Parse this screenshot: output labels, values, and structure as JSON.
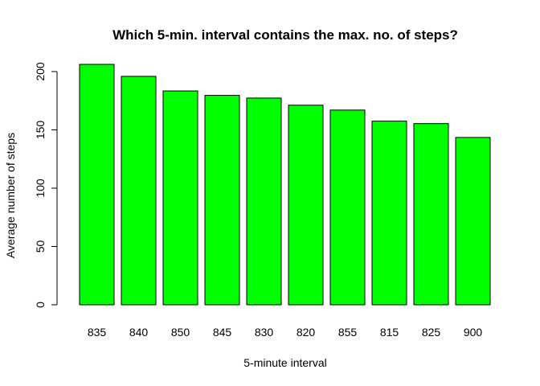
{
  "chart_data": {
    "type": "bar",
    "title": "Which 5-min. interval contains the max. no. of steps?",
    "xlabel": "5-minute interval",
    "ylabel": "Average number of steps",
    "categories": [
      "835",
      "840",
      "850",
      "845",
      "830",
      "820",
      "855",
      "815",
      "825",
      "900"
    ],
    "values": [
      206.2,
      195.9,
      183.4,
      179.6,
      177.3,
      171.2,
      167.0,
      157.5,
      155.4,
      143.5
    ],
    "ylim": [
      0,
      210
    ],
    "yticks": [
      "0",
      "50",
      "100",
      "150",
      "200"
    ],
    "grid": false,
    "legend": "none",
    "bar_color": "#00ff00",
    "bar_border_color": "#000000"
  }
}
